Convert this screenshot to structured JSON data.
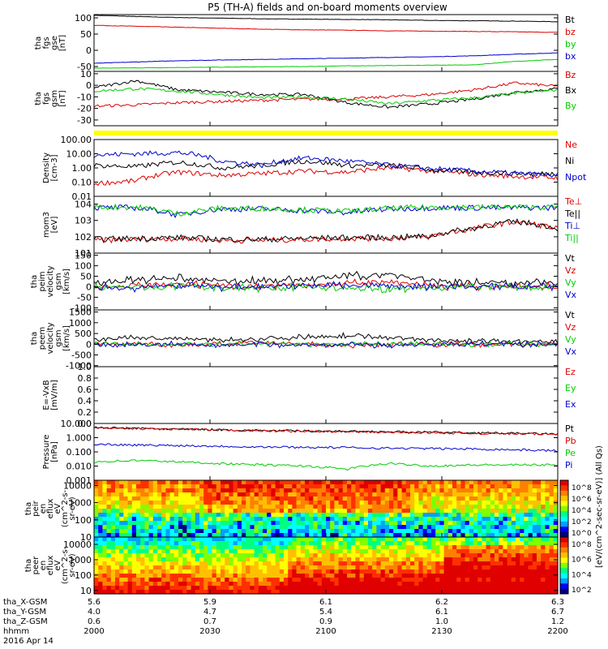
{
  "page": {
    "title": "P5 (TH-A) fields and on-board moments overview"
  },
  "chart_data": [
    {
      "type": "line",
      "panel": "fgs-gse",
      "ylabel": [
        "tha",
        "fgs",
        "gse",
        "[nT]"
      ],
      "yticks": [
        100,
        50,
        0,
        -50
      ],
      "ylim": [
        -65,
        110
      ],
      "series": [
        {
          "name": "Bt",
          "color": "#000000",
          "values": [
            108,
            104,
            101,
            99,
            97,
            96,
            95,
            94,
            92,
            91,
            90,
            88
          ]
        },
        {
          "name": "bz",
          "color": "#dd0000",
          "values": [
            77,
            74,
            71,
            68,
            65,
            63,
            62,
            60,
            59,
            58,
            57,
            55
          ]
        },
        {
          "name": "by",
          "color": "#00cc00",
          "values": [
            -55,
            -54,
            -53,
            -52,
            -51,
            -50,
            -48,
            -47,
            -46,
            -45,
            -34,
            -28
          ]
        },
        {
          "name": "bx",
          "color": "#0000cc",
          "values": [
            -40,
            -36,
            -32,
            -30,
            -28,
            -26,
            -24,
            -22,
            -20,
            -17,
            -12,
            -8
          ]
        }
      ]
    },
    {
      "type": "line",
      "panel": "fgs-gsm",
      "ylabel": [
        "tha",
        "fgs",
        "gsm",
        "[nT]"
      ],
      "yticks": [
        10,
        0,
        -10,
        -20,
        -30
      ],
      "ylim": [
        -35,
        12
      ],
      "series": [
        {
          "name": "Bz",
          "color": "#dd0000",
          "values": [
            -18,
            -17,
            -15,
            -14,
            -13,
            -12,
            -12,
            -10,
            -8,
            -4,
            2,
            -1
          ]
        },
        {
          "name": "Bx",
          "color": "#000000",
          "values": [
            -2,
            4,
            -4,
            -6,
            -8,
            -8,
            -15,
            -19,
            -16,
            -12,
            -6,
            -3
          ]
        },
        {
          "name": "By",
          "color": "#00cc00",
          "values": [
            -5,
            -3,
            -5,
            -8,
            -11,
            -10,
            -12,
            -16,
            -13,
            -11,
            -7,
            -4
          ]
        }
      ]
    },
    {
      "type": "line",
      "panel": "density",
      "ylabel": [
        "Density",
        "[cm-3]"
      ],
      "yticks": [
        "100.00",
        "10.00",
        "1.00",
        "0.10",
        "0.01"
      ],
      "ylim": [
        0.01,
        100
      ],
      "log": true,
      "series": [
        {
          "name": "Ne",
          "color": "#dd0000",
          "values": [
            0.08,
            0.12,
            0.5,
            0.3,
            0.4,
            0.6,
            0.5,
            1.0,
            0.6,
            0.35,
            0.25,
            0.2
          ]
        },
        {
          "name": "Ni",
          "color": "#000000",
          "values": [
            1.5,
            1.2,
            2.5,
            1.0,
            1.5,
            3.0,
            1.5,
            1.5,
            0.7,
            0.5,
            0.4,
            0.4
          ]
        },
        {
          "name": "Npot",
          "color": "#0000cc",
          "values": [
            8,
            10,
            12,
            3,
            1.5,
            5,
            3,
            1.5,
            0.9,
            0.6,
            0.4,
            0.3
          ]
        }
      ]
    },
    {
      "type": "line",
      "panel": "temperature",
      "ylabel": [
        "mom3",
        "[eV]"
      ],
      "yticks": [
        "10^4",
        "10^3",
        "10^2",
        "10^1"
      ],
      "ylim": [
        10,
        30000
      ],
      "log": true,
      "series": [
        {
          "name": "Te⊥",
          "color": "#dd0000",
          "values": [
            60,
            70,
            80,
            60,
            60,
            70,
            80,
            80,
            100,
            300,
            800,
            300
          ]
        },
        {
          "name": "Te||",
          "color": "#000000",
          "values": [
            70,
            80,
            90,
            70,
            70,
            80,
            90,
            90,
            110,
            320,
            850,
            320
          ]
        },
        {
          "name": "Ti⊥",
          "color": "#0000cc",
          "values": [
            6000,
            6000,
            2000,
            5000,
            5000,
            4000,
            3000,
            5000,
            6000,
            6000,
            6000,
            6000
          ]
        },
        {
          "name": "Ti||",
          "color": "#00cc00",
          "values": [
            6500,
            6500,
            2500,
            5500,
            5500,
            4500,
            3500,
            5500,
            6500,
            6500,
            6500,
            6500
          ]
        }
      ]
    },
    {
      "type": "line",
      "panel": "peim-velocity",
      "ylabel": [
        "tha",
        "peim",
        "velocity",
        "gsm",
        "[km/s]"
      ],
      "yticks": [
        150,
        100,
        50,
        0,
        -50,
        -100
      ],
      "ylim": [
        -110,
        160
      ],
      "series": [
        {
          "name": "Vt",
          "color": "#000000",
          "values": [
            20,
            30,
            40,
            25,
            30,
            35,
            50,
            60,
            30,
            20,
            20,
            20
          ]
        },
        {
          "name": "Vz",
          "color": "#dd0000",
          "values": [
            0,
            5,
            10,
            5,
            5,
            10,
            15,
            20,
            5,
            0,
            0,
            0
          ]
        },
        {
          "name": "Vy",
          "color": "#00cc00",
          "values": [
            0,
            -5,
            0,
            -5,
            -5,
            0,
            -10,
            -10,
            -5,
            0,
            0,
            0
          ]
        },
        {
          "name": "Vx",
          "color": "#0000cc",
          "values": [
            -5,
            -5,
            5,
            0,
            0,
            5,
            10,
            5,
            0,
            0,
            0,
            0
          ]
        }
      ]
    },
    {
      "type": "line",
      "panel": "peem-velocity",
      "ylabel": [
        "tha",
        "peem",
        "velocity",
        "gsm",
        "[km/s]"
      ],
      "yticks": [
        1500,
        1000,
        500,
        0,
        -500,
        -1000
      ],
      "ylim": [
        -1050,
        1600
      ],
      "series": [
        {
          "name": "Vt",
          "color": "#000000",
          "values": [
            200,
            300,
            250,
            200,
            250,
            350,
            400,
            300,
            200,
            150,
            120,
            100
          ]
        },
        {
          "name": "Vz",
          "color": "#dd0000",
          "values": [
            0,
            50,
            -50,
            0,
            50,
            0,
            -50,
            0,
            0,
            0,
            0,
            0
          ]
        },
        {
          "name": "Vy",
          "color": "#00cc00",
          "values": [
            0,
            0,
            0,
            0,
            0,
            0,
            0,
            0,
            0,
            0,
            0,
            0
          ]
        },
        {
          "name": "Vx",
          "color": "#0000cc",
          "values": [
            0,
            -50,
            0,
            -50,
            0,
            -50,
            0,
            -50,
            0,
            0,
            0,
            0
          ]
        }
      ]
    },
    {
      "type": "line",
      "panel": "efield",
      "ylabel": [
        "E=-VxB",
        "[mV/m]"
      ],
      "yticks": [
        "1.0",
        "0.8",
        "0.6",
        "0.4",
        "0.2",
        "0.0"
      ],
      "ylim": [
        0,
        1
      ],
      "series": [
        {
          "name": "Ez",
          "color": "#dd0000",
          "values": []
        },
        {
          "name": "Ey",
          "color": "#00cc00",
          "values": []
        },
        {
          "name": "Ex",
          "color": "#0000cc",
          "values": []
        }
      ]
    },
    {
      "type": "line",
      "panel": "pressure",
      "ylabel": [
        "Pressure",
        "[nPa]"
      ],
      "yticks": [
        "10.000",
        "1.000",
        "0.100",
        "0.010",
        "0.001"
      ],
      "ylim": [
        0.001,
        10
      ],
      "log": true,
      "series": [
        {
          "name": "Pt",
          "color": "#000000",
          "values": [
            5.0,
            4.5,
            4.0,
            3.6,
            3.2,
            3.0,
            2.8,
            2.6,
            2.4,
            2.2,
            2.0,
            1.8
          ]
        },
        {
          "name": "Pb",
          "color": "#dd0000",
          "values": [
            4.8,
            4.3,
            3.8,
            3.4,
            3.0,
            2.8,
            2.6,
            2.4,
            2.2,
            2.0,
            1.9,
            1.7
          ]
        },
        {
          "name": "Pe",
          "color": "#00cc00",
          "values": [
            0.02,
            0.025,
            0.02,
            0.015,
            0.012,
            0.01,
            0.006,
            0.015,
            0.01,
            0.012,
            0.012,
            0.012
          ]
        },
        {
          "name": "Pi",
          "color": "#0000cc",
          "values": [
            0.35,
            0.3,
            0.28,
            0.25,
            0.22,
            0.21,
            0.2,
            0.18,
            0.17,
            0.16,
            0.14,
            0.12
          ]
        }
      ]
    },
    {
      "type": "heatmap",
      "panel": "peir",
      "ylabel": [
        "tha",
        "peir",
        "en",
        "eflux",
        "eV",
        "(cm^2-s-",
        "sr-eV)"
      ],
      "yticks": [
        "10000",
        "1000",
        "100",
        "10"
      ],
      "ylim": [
        10,
        20000
      ],
      "colorbar": {
        "label": "[eV/(cm^2-sec-sr-eV)] (All Qs)",
        "ticks": [
          "10^8",
          "10^6",
          "10^4",
          "10^2",
          "10^0"
        ]
      }
    },
    {
      "type": "heatmap",
      "panel": "peer",
      "ylabel": [
        "tha",
        "peer",
        "en",
        "eflux",
        "eV",
        "(cm^2-s-",
        "sr-eV)"
      ],
      "yticks": [
        "10000",
        "1000",
        "100",
        "10"
      ],
      "ylim": [
        6,
        30000
      ],
      "colorbar": {
        "ticks": [
          "10^8",
          "10^6",
          "10^4",
          "10^2"
        ]
      }
    }
  ],
  "xaxis": {
    "rows": [
      {
        "label": "tha_X-GSM",
        "values": [
          "5.6",
          "5.9",
          "6.1",
          "6.2",
          "6.3"
        ]
      },
      {
        "label": "tha_Y-GSM",
        "values": [
          "4.0",
          "4.7",
          "5.4",
          "6.1",
          "6.7"
        ]
      },
      {
        "label": "tha_Z-GSM",
        "values": [
          "0.6",
          "0.7",
          "0.9",
          "1.0",
          "1.2"
        ]
      },
      {
        "label": "hhmm",
        "values": [
          "2000",
          "2030",
          "2100",
          "2130",
          "2200"
        ]
      }
    ],
    "date": "2016 Apr 14"
  }
}
